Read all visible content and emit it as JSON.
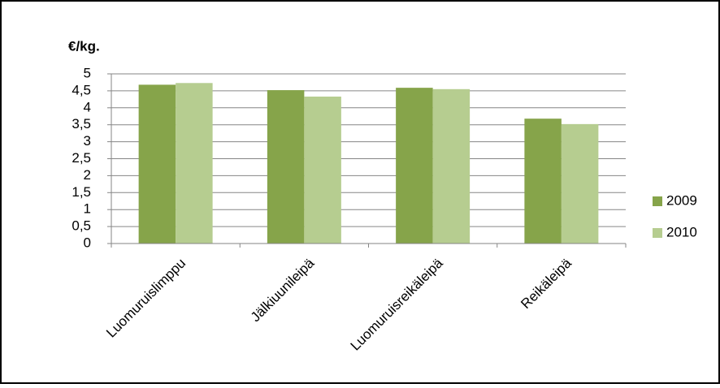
{
  "chart_data": {
    "type": "bar",
    "y_label": "€/kg.",
    "categories": [
      "Luomuruislimppu",
      "Jälkiuunileipä",
      "Luomuruisreikäleipä",
      "Reikäleipä"
    ],
    "series": [
      {
        "name": "2009",
        "color": "#86a44a",
        "values": [
          4.68,
          4.52,
          4.59,
          3.68
        ]
      },
      {
        "name": "2010",
        "color": "#b6cd90",
        "values": [
          4.73,
          4.33,
          4.55,
          3.52
        ]
      }
    ],
    "ylim": [
      0,
      5
    ],
    "yticks": [
      0,
      {
        "value": 0.5,
        "label": "0,5"
      },
      1,
      {
        "value": 1.5,
        "label": "1,5"
      },
      2,
      {
        "value": 2.5,
        "label": "2,5"
      },
      3,
      {
        "value": 3.5,
        "label": "3,5"
      },
      4,
      {
        "value": 4.5,
        "label": "4,5"
      },
      5
    ],
    "grid": true,
    "legend": "right"
  }
}
